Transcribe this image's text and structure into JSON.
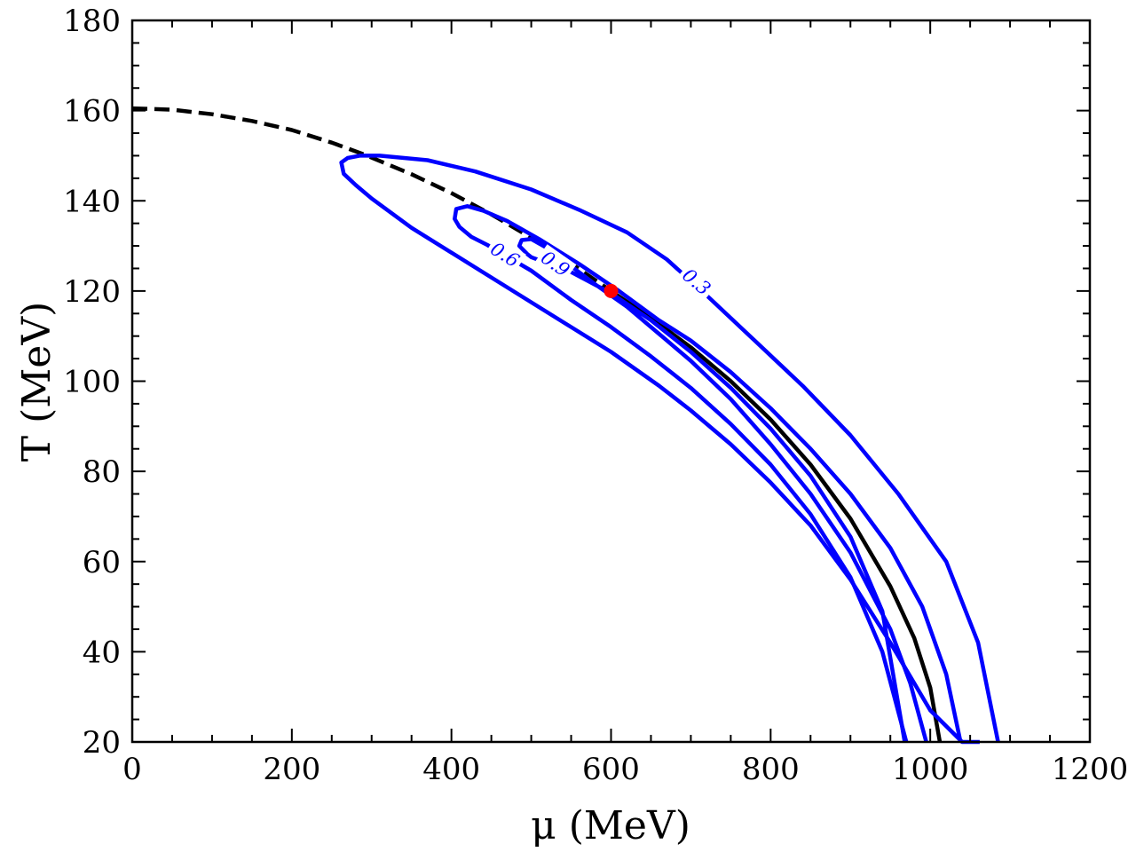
{
  "chart_data": {
    "type": "line",
    "xlabel": "μ (MeV)",
    "ylabel": "T (MeV)",
    "xlim": [
      0,
      1200
    ],
    "ylim": [
      20,
      180
    ],
    "x_ticks": [
      0,
      200,
      400,
      600,
      800,
      1000,
      1200
    ],
    "x_tick_labels": [
      "0",
      "200",
      "400",
      "600",
      "800",
      "1000",
      "1200"
    ],
    "y_ticks": [
      20,
      40,
      60,
      80,
      100,
      120,
      140,
      160,
      180
    ],
    "y_tick_labels": [
      "20",
      "40",
      "60",
      "80",
      "100",
      "120",
      "140",
      "160",
      "180"
    ],
    "grid": false,
    "series": [
      {
        "style": "dashed",
        "color": "#000000",
        "x": [
          0,
          50,
          100,
          150,
          200,
          250,
          290,
          350,
          400,
          450,
          500,
          550,
          600
        ],
        "y": [
          160.5,
          160.2,
          159.2,
          157.7,
          155.7,
          152.9,
          150.3,
          145.9,
          141.7,
          137.0,
          131.8,
          126.1,
          120.0
        ]
      },
      {
        "style": "solid",
        "color": "#000000",
        "x": [
          600,
          650,
          700,
          750,
          800,
          850,
          900,
          950,
          980,
          1000,
          1012
        ],
        "y": [
          120.0,
          114.0,
          107.5,
          100.0,
          91.5,
          81.5,
          69.5,
          54.5,
          43.0,
          32.0,
          20.0
        ]
      },
      {
        "style": "solid",
        "color": "#0000ff",
        "x": [
          1085,
          1060,
          1020,
          960,
          900,
          840,
          780,
          720,
          670,
          620,
          560,
          500,
          430,
          370,
          310,
          285,
          270,
          262,
          265,
          280,
          300,
          350,
          400,
          450,
          500,
          550,
          600,
          660,
          700,
          750,
          800,
          850,
          900,
          950,
          1000,
          1040,
          1062
        ],
        "y": [
          20,
          42,
          60,
          75,
          88,
          99,
          109,
          119,
          127,
          133,
          138,
          142.5,
          146.5,
          149,
          150,
          150,
          149.5,
          148.5,
          146,
          143.5,
          140.5,
          134,
          128.5,
          123,
          117.5,
          112,
          106.5,
          99,
          93.5,
          86,
          77.5,
          68,
          56,
          42,
          27,
          20,
          20
        ]
      },
      {
        "style": "solid",
        "color": "#0000ff",
        "x": [
          1038,
          1020,
          990,
          950,
          900,
          850,
          800,
          750,
          700,
          660,
          610,
          560,
          510,
          470,
          440,
          420,
          406,
          404,
          410,
          425,
          445,
          500,
          550,
          600,
          650,
          700,
          750,
          800,
          850,
          900,
          940,
          970
        ],
        "y": [
          20,
          35,
          50,
          63,
          75,
          85,
          94,
          102,
          109,
          113.5,
          120,
          126,
          131.5,
          135.5,
          137.8,
          138.8,
          138.2,
          136,
          134.2,
          132,
          130.2,
          124.5,
          118,
          112,
          105.5,
          98.5,
          90.5,
          81.5,
          70.5,
          56.5,
          40,
          20
        ]
      },
      {
        "style": "solid",
        "color": "#0000ff",
        "x": [
          995,
          975,
          950,
          900,
          850,
          800,
          750,
          700,
          660,
          620,
          580,
          550,
          520,
          500,
          488,
          485,
          495,
          500,
          550,
          600,
          650,
          700,
          750,
          800,
          850,
          900,
          940,
          968
        ],
        "y": [
          20,
          33,
          45,
          62,
          75,
          86,
          96,
          104.5,
          110.5,
          116.5,
          121.5,
          125.5,
          129.5,
          131.5,
          131.3,
          130,
          128.2,
          127.5,
          124.2,
          119.5,
          113.5,
          106.5,
          98.5,
          89.5,
          79,
          65.5,
          49,
          20
        ]
      }
    ],
    "contour_labels": [
      {
        "text": "0.3",
        "x": 707,
        "y": 122,
        "rotation": 40
      },
      {
        "text": "0.6",
        "x": 467,
        "y": 128,
        "rotation": 32
      },
      {
        "text": "0.9",
        "x": 530,
        "y": 126,
        "rotation": 35
      }
    ],
    "point": {
      "x": 600,
      "y": 120,
      "color": "#ff0000"
    }
  }
}
